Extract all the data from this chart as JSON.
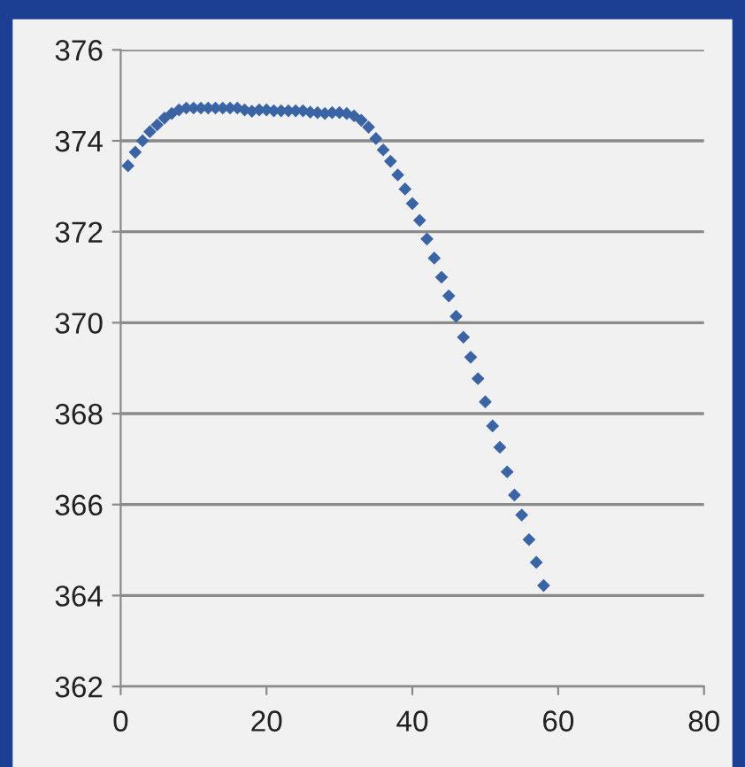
{
  "chart_data": {
    "type": "scatter",
    "marker": "diamond",
    "grid": "y",
    "legend": false,
    "x": [
      1,
      2,
      3,
      4,
      5,
      6,
      7,
      8,
      9,
      10,
      11,
      12,
      13,
      14,
      15,
      16,
      17,
      18,
      19,
      20,
      21,
      22,
      23,
      24,
      25,
      26,
      27,
      28,
      29,
      30,
      31,
      32,
      33,
      34,
      35,
      36,
      37,
      38,
      39,
      40,
      41,
      42,
      43,
      44,
      45,
      46,
      47,
      48,
      49,
      50,
      51,
      52,
      53,
      54,
      55,
      56,
      57,
      58
    ],
    "series": [
      {
        "color": "#3a64a4",
        "values": [
          373.45,
          373.75,
          374.0,
          374.2,
          374.35,
          374.5,
          374.6,
          374.68,
          374.72,
          374.72,
          374.72,
          374.72,
          374.72,
          374.72,
          374.72,
          374.72,
          374.68,
          374.65,
          374.68,
          374.68,
          374.66,
          374.66,
          374.66,
          374.66,
          374.66,
          374.63,
          374.62,
          374.6,
          374.62,
          374.62,
          374.6,
          374.55,
          374.45,
          374.3,
          374.05,
          373.8,
          373.55,
          373.25,
          372.94,
          372.62,
          372.25,
          371.84,
          371.42,
          371.0,
          370.59,
          370.14,
          369.68,
          369.24,
          368.77,
          368.26,
          367.73,
          367.26,
          366.72,
          366.21,
          365.77,
          365.23,
          364.73,
          364.22
        ]
      }
    ],
    "xlim": [
      0,
      80
    ],
    "xticks": [
      0,
      20,
      40,
      60,
      80
    ],
    "ylim": [
      362,
      376
    ],
    "yticks": [
      362,
      364,
      366,
      368,
      370,
      372,
      374,
      376
    ]
  }
}
